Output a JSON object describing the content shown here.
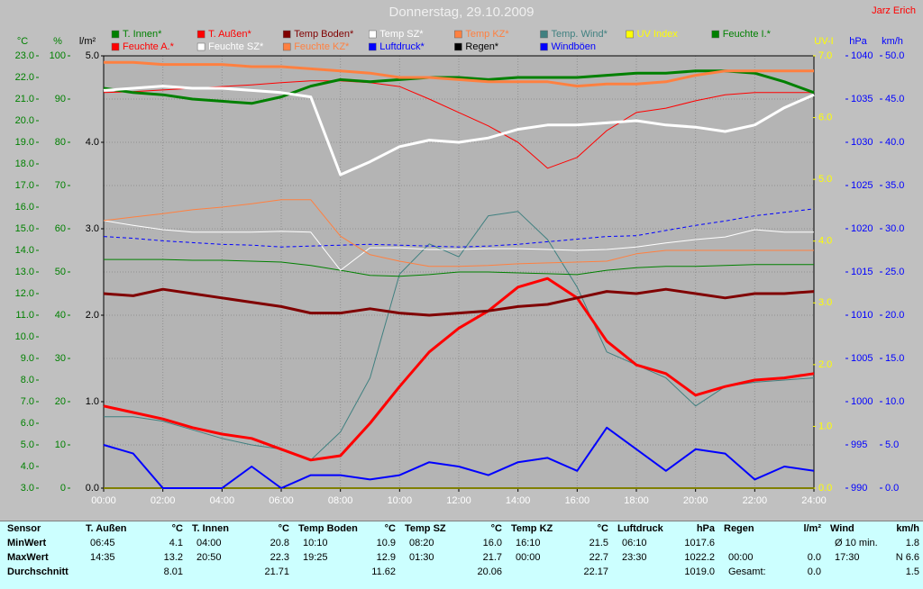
{
  "chart_data": {
    "type": "line",
    "title": "Donnerstag, 29.10.2009",
    "author": "Jarz Erich",
    "grid": true,
    "x": [
      0,
      1,
      2,
      3,
      4,
      5,
      6,
      7,
      8,
      9,
      10,
      11,
      12,
      13,
      14,
      15,
      16,
      17,
      18,
      19,
      20,
      21,
      22,
      23,
      24
    ],
    "xlim": [
      0,
      24
    ],
    "xticks": [
      {
        "value": 0,
        "label": "00:00"
      },
      {
        "value": 2,
        "label": "02:00"
      },
      {
        "value": 4,
        "label": "04:00"
      },
      {
        "value": 6,
        "label": "06:00"
      },
      {
        "value": 8,
        "label": "08:00"
      },
      {
        "value": 10,
        "label": "10:00"
      },
      {
        "value": 12,
        "label": "12:00"
      },
      {
        "value": 14,
        "label": "14:00"
      },
      {
        "value": 16,
        "label": "16:00"
      },
      {
        "value": 18,
        "label": "18:00"
      },
      {
        "value": 20,
        "label": "20:00"
      },
      {
        "value": 22,
        "label": "22:00"
      },
      {
        "value": 24,
        "label": "24:00"
      }
    ],
    "axes": [
      {
        "id": "c",
        "label": "°C",
        "color": "#008000",
        "lim": [
          3,
          23
        ],
        "ticks": [
          {
            "value": 3,
            "label": "3.0"
          },
          {
            "value": 4,
            "label": "4.0"
          },
          {
            "value": 5,
            "label": "5.0"
          },
          {
            "value": 6,
            "label": "6.0"
          },
          {
            "value": 7,
            "label": "7.0"
          },
          {
            "value": 8,
            "label": "8.0"
          },
          {
            "value": 9,
            "label": "9.0"
          },
          {
            "value": 10,
            "label": "10.0"
          },
          {
            "value": 11,
            "label": "11.0"
          },
          {
            "value": 12,
            "label": "12.0"
          },
          {
            "value": 13,
            "label": "13.0"
          },
          {
            "value": 14,
            "label": "14.0"
          },
          {
            "value": 15,
            "label": "15.0"
          },
          {
            "value": 16,
            "label": "16.0"
          },
          {
            "value": 17,
            "label": "17.0"
          },
          {
            "value": 18,
            "label": "18.0"
          },
          {
            "value": 19,
            "label": "19.0"
          },
          {
            "value": 20,
            "label": "20.0"
          },
          {
            "value": 21,
            "label": "21.0"
          },
          {
            "value": 22,
            "label": "22.0"
          },
          {
            "value": 23,
            "label": "23.0"
          }
        ]
      },
      {
        "id": "pct",
        "label": "%",
        "color": "#008000",
        "lim": [
          0,
          100
        ],
        "ticks": [
          0,
          10,
          20,
          30,
          40,
          50,
          60,
          70,
          80,
          90,
          100
        ]
      },
      {
        "id": "rain",
        "label": "l/m²",
        "color": "#000000",
        "lim": [
          0,
          5
        ],
        "ticks": [
          {
            "value": 0,
            "label": "0.0"
          },
          {
            "value": 1,
            "label": "1.0"
          },
          {
            "value": 2,
            "label": "2.0"
          },
          {
            "value": 3,
            "label": "3.0"
          },
          {
            "value": 4,
            "label": "4.0"
          },
          {
            "value": 5,
            "label": "5.0"
          }
        ]
      },
      {
        "id": "uv",
        "label": "UV-I",
        "color": "#ffff00",
        "lim": [
          0,
          7
        ],
        "ticks": [
          {
            "value": 0,
            "label": "0.0"
          },
          {
            "value": 1,
            "label": "1.0"
          },
          {
            "value": 2,
            "label": "2.0"
          },
          {
            "value": 3,
            "label": "3.0"
          },
          {
            "value": 4,
            "label": "4.0"
          },
          {
            "value": 5,
            "label": "5.0"
          },
          {
            "value": 6,
            "label": "6.0"
          },
          {
            "value": 7,
            "label": "7.0"
          }
        ]
      },
      {
        "id": "hpa",
        "label": "hPa",
        "color": "#0000ff",
        "lim": [
          990,
          1040
        ],
        "ticks": [
          990,
          995,
          1000,
          1005,
          1010,
          1015,
          1020,
          1025,
          1030,
          1035,
          1040
        ]
      },
      {
        "id": "kmh",
        "label": "km/h",
        "color": "#0000ff",
        "lim": [
          0,
          50
        ],
        "ticks": [
          {
            "value": 0,
            "label": "0.0"
          },
          {
            "value": 5,
            "label": "5.0"
          },
          {
            "value": 10,
            "label": "10.0"
          },
          {
            "value": 15,
            "label": "15.0"
          },
          {
            "value": 20,
            "label": "20.0"
          },
          {
            "value": 25,
            "label": "25.0"
          },
          {
            "value": 30,
            "label": "30.0"
          },
          {
            "value": 35,
            "label": "35.0"
          },
          {
            "value": 40,
            "label": "40.0"
          },
          {
            "value": 45,
            "label": "45.0"
          },
          {
            "value": 50,
            "label": "50.0"
          }
        ]
      }
    ],
    "series": [
      {
        "name": "T. Innen*",
        "color": "#008000",
        "axis": "c",
        "width": 3,
        "values": [
          21.5,
          21.3,
          21.2,
          21.0,
          20.9,
          20.8,
          21.1,
          21.6,
          21.9,
          21.8,
          21.9,
          22.0,
          22.0,
          21.9,
          22.0,
          22.0,
          22.0,
          22.1,
          22.2,
          22.2,
          22.3,
          22.3,
          22.2,
          21.8,
          21.3
        ]
      },
      {
        "name": "T. Außen*",
        "color": "#ff0000",
        "axis": "c",
        "width": 3,
        "values": [
          6.8,
          6.5,
          6.2,
          5.8,
          5.5,
          5.3,
          4.8,
          4.3,
          4.5,
          6.0,
          7.7,
          9.3,
          10.4,
          11.2,
          12.3,
          12.7,
          11.8,
          9.8,
          8.7,
          8.3,
          7.3,
          7.7,
          8.0,
          8.1,
          8.3
        ]
      },
      {
        "name": "Temp Boden*",
        "color": "#800000",
        "axis": "c",
        "width": 3,
        "values": [
          12.0,
          11.9,
          12.2,
          12.0,
          11.8,
          11.6,
          11.4,
          11.1,
          11.1,
          11.3,
          11.1,
          11.0,
          11.1,
          11.2,
          11.4,
          11.5,
          11.8,
          12.1,
          12.0,
          12.2,
          12.0,
          11.8,
          12.0,
          12.0,
          12.1
        ]
      },
      {
        "name": "Temp SZ*",
        "color": "#ffffff",
        "axis": "c",
        "width": 3,
        "values": [
          21.4,
          21.5,
          21.6,
          21.5,
          21.5,
          21.4,
          21.3,
          21.1,
          17.5,
          18.1,
          18.8,
          19.1,
          19.0,
          19.2,
          19.6,
          19.8,
          19.8,
          19.9,
          20.0,
          19.8,
          19.7,
          19.5,
          19.8,
          20.6,
          21.2
        ]
      },
      {
        "name": "Temp KZ*",
        "color": "#ff8040",
        "axis": "c",
        "width": 3,
        "values": [
          22.7,
          22.7,
          22.6,
          22.6,
          22.6,
          22.5,
          22.5,
          22.4,
          22.3,
          22.2,
          22.0,
          22.0,
          21.9,
          21.8,
          21.8,
          21.8,
          21.6,
          21.7,
          21.7,
          21.8,
          22.1,
          22.3,
          22.3,
          22.3,
          22.3
        ]
      },
      {
        "name": "Temp. Wind*",
        "color": "#408080",
        "axis": "c",
        "width": 1,
        "values": [
          6.3,
          6.3,
          6.1,
          5.7,
          5.3,
          5.0,
          4.8,
          4.3,
          5.6,
          8.1,
          12.9,
          14.3,
          13.7,
          15.6,
          15.8,
          14.5,
          12.3,
          9.3,
          8.7,
          8.1,
          6.8,
          7.7,
          7.9,
          8.0,
          8.1
        ]
      },
      {
        "name": "UV Index",
        "color": "#ffff00",
        "axis": "uv",
        "width": 2,
        "values": [
          0,
          0,
          0,
          0,
          0,
          0,
          0,
          0,
          0,
          0,
          0,
          0,
          0,
          0,
          0,
          0,
          0,
          0,
          0,
          0,
          0,
          0,
          0,
          0,
          0
        ]
      },
      {
        "name": "Feuchte I.*",
        "color": "#008000",
        "axis": "pct",
        "width": 1,
        "values": [
          52.9,
          52.9,
          52.9,
          52.7,
          52.7,
          52.5,
          52.3,
          51.5,
          50.4,
          49.2,
          49.0,
          49.4,
          50.0,
          50.0,
          49.8,
          49.6,
          49.4,
          50.4,
          51.0,
          51.3,
          51.3,
          51.5,
          51.7,
          51.7,
          51.7
        ]
      },
      {
        "name": "Feuchte A.*",
        "color": "#ff0000",
        "axis": "pct",
        "width": 1,
        "values": [
          91.5,
          91.7,
          92.1,
          92.5,
          92.9,
          93.3,
          93.8,
          94.2,
          94.2,
          93.8,
          92.9,
          90.0,
          86.9,
          83.8,
          80.0,
          74.0,
          76.5,
          82.7,
          86.9,
          87.9,
          89.6,
          91.0,
          91.5,
          91.5,
          91.5
        ]
      },
      {
        "name": "Feuchte SZ*",
        "color": "#ffffff",
        "axis": "pct",
        "width": 1,
        "values": [
          61.9,
          60.8,
          59.8,
          59.2,
          59.2,
          59.2,
          59.4,
          59.2,
          50.4,
          55.6,
          55.6,
          55.2,
          55.2,
          55.4,
          55.4,
          55.2,
          55.0,
          55.2,
          55.8,
          56.7,
          57.5,
          58.1,
          59.8,
          59.2,
          59.2
        ]
      },
      {
        "name": "Feuchte KZ*",
        "color": "#ff8040",
        "axis": "pct",
        "width": 1,
        "values": [
          61.9,
          62.7,
          63.5,
          64.4,
          65.0,
          65.8,
          66.7,
          66.7,
          58.3,
          54.0,
          52.5,
          51.3,
          51.3,
          51.5,
          51.9,
          52.1,
          52.3,
          52.5,
          54.2,
          55.0,
          55.0,
          55.0,
          55.0,
          55.0,
          55.0
        ]
      },
      {
        "name": "Luftdruck*",
        "color": "#0000ff",
        "axis": "hpa",
        "width": 1,
        "dash": true,
        "values": [
          1019.1,
          1018.9,
          1018.6,
          1018.4,
          1018.2,
          1018.1,
          1017.9,
          1018.0,
          1018.1,
          1018.2,
          1018.1,
          1018.0,
          1017.9,
          1018.0,
          1018.2,
          1018.5,
          1018.8,
          1019.1,
          1019.2,
          1019.8,
          1020.4,
          1020.9,
          1021.5,
          1021.9,
          1022.3
        ]
      },
      {
        "name": "Regen*",
        "color": "#000000",
        "axis": "rain",
        "width": 1,
        "values": [
          0,
          0,
          0,
          0,
          0,
          0,
          0,
          0,
          0,
          0,
          0,
          0,
          0,
          0,
          0,
          0,
          0,
          0,
          0,
          0,
          0,
          0,
          0,
          0,
          0
        ]
      },
      {
        "name": "Windböen",
        "color": "#0000ff",
        "axis": "kmh",
        "width": 2,
        "values": [
          5.0,
          4.0,
          0,
          0,
          0,
          2.5,
          0,
          1.5,
          1.5,
          1.0,
          1.5,
          3.0,
          2.5,
          1.5,
          3.0,
          3.5,
          2.0,
          7.0,
          4.5,
          2.0,
          4.5,
          4.0,
          1.0,
          2.5,
          2.0
        ]
      }
    ]
  },
  "table": {
    "row_labels": [
      "Sensor",
      "MinWert",
      "MaxWert",
      "Durchschnitt"
    ],
    "columns": [
      {
        "header": "T. Außen",
        "unit": "°C",
        "min": [
          "06:45",
          "4.1"
        ],
        "max": [
          "14:35",
          "13.2"
        ],
        "avg": [
          "8.01"
        ]
      },
      {
        "header": "T. Innen",
        "unit": "°C",
        "min": [
          "04:00",
          "20.8"
        ],
        "max": [
          "20:50",
          "22.3"
        ],
        "avg": [
          "21.71"
        ]
      },
      {
        "header": "Temp Boden",
        "unit": "°C",
        "min": [
          "10:10",
          "10.9"
        ],
        "max": [
          "19:25",
          "12.9"
        ],
        "avg": [
          "11.62"
        ]
      },
      {
        "header": "Temp SZ",
        "unit": "°C",
        "min": [
          "08:20",
          "16.0"
        ],
        "max": [
          "01:30",
          "21.7"
        ],
        "avg": [
          "20.06"
        ]
      },
      {
        "header": "Temp KZ",
        "unit": "°C",
        "min": [
          "16:10",
          "21.5"
        ],
        "max": [
          "00:00",
          "22.7"
        ],
        "avg": [
          "22.17"
        ]
      },
      {
        "header": "Luftdruck",
        "unit": "hPa",
        "min": [
          "06:10",
          "1017.6"
        ],
        "max": [
          "23:30",
          "1022.2"
        ],
        "avg": [
          "1019.0"
        ]
      },
      {
        "header": "Regen",
        "unit": "l/m²",
        "max": [
          "00:00",
          "0.0"
        ],
        "avg": [
          "Gesamt:",
          "0.0"
        ]
      },
      {
        "header": "Wind",
        "unit": "km/h",
        "min": [
          "Ø 10 min.",
          "1.8"
        ],
        "max": [
          "17:30",
          "N 6.6"
        ],
        "avg": [
          "1.5"
        ]
      }
    ]
  }
}
